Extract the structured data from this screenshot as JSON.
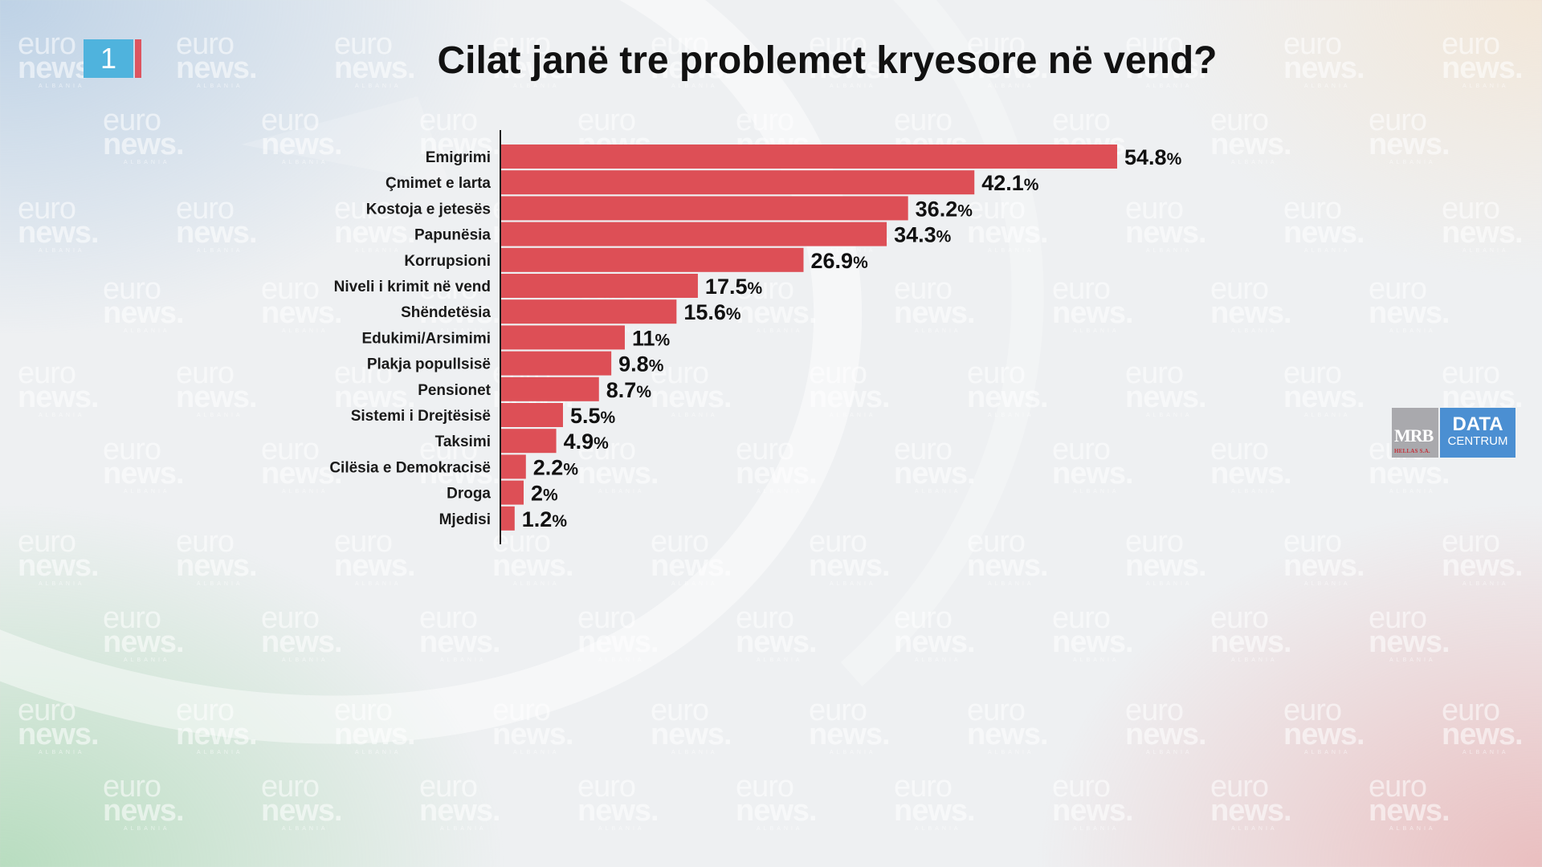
{
  "page": {
    "badge_number": "1",
    "title": "Cilat janë tre problemet kryesore në vend?"
  },
  "watermark": {
    "line1": "euro",
    "line2": "news.",
    "line3": "ALBANIA"
  },
  "logo": {
    "mrb": "MRB",
    "mrb_sub": "HELLAS S.A.",
    "data": "DATA",
    "centrum": "CENTRUM"
  },
  "colors": {
    "bar": "#dd4f56",
    "badge": "#4fb3dd",
    "badge_accent": "#dd5560",
    "logo_blue": "#4b8fd2",
    "logo_gray": "#a9a9ad"
  },
  "chart_data": {
    "type": "bar",
    "orientation": "horizontal",
    "title": "Cilat janë tre problemet kryesore në vend?",
    "xlabel": "",
    "ylabel": "",
    "value_suffix": "%",
    "xlim": [
      0,
      60
    ],
    "grid": false,
    "legend": "none",
    "categories": [
      "Emigrimi",
      "Çmimet e larta",
      "Kostoja e jetesës",
      "Papunësia",
      "Korrupsioni",
      "Niveli i krimit në vend",
      "Shëndetësia",
      "Edukimi/Arsimimi",
      "Plakja popullsisë",
      "Pensionet",
      "Sistemi i Drejtësisë",
      "Taksimi",
      "Cilësia e Demokracisë",
      "Droga",
      "Mjedisi"
    ],
    "values": [
      54.8,
      42.1,
      36.2,
      34.3,
      26.9,
      17.5,
      15.6,
      11,
      9.8,
      8.7,
      5.5,
      4.9,
      2.2,
      2,
      1.2
    ],
    "value_labels": [
      "54.8",
      "42.1",
      "36.2",
      "34.3",
      "26.9",
      "17.5",
      "15.6",
      "11",
      "9.8",
      "8.7",
      "5.5",
      "4.9",
      "2.2",
      "2",
      "1.2"
    ]
  }
}
